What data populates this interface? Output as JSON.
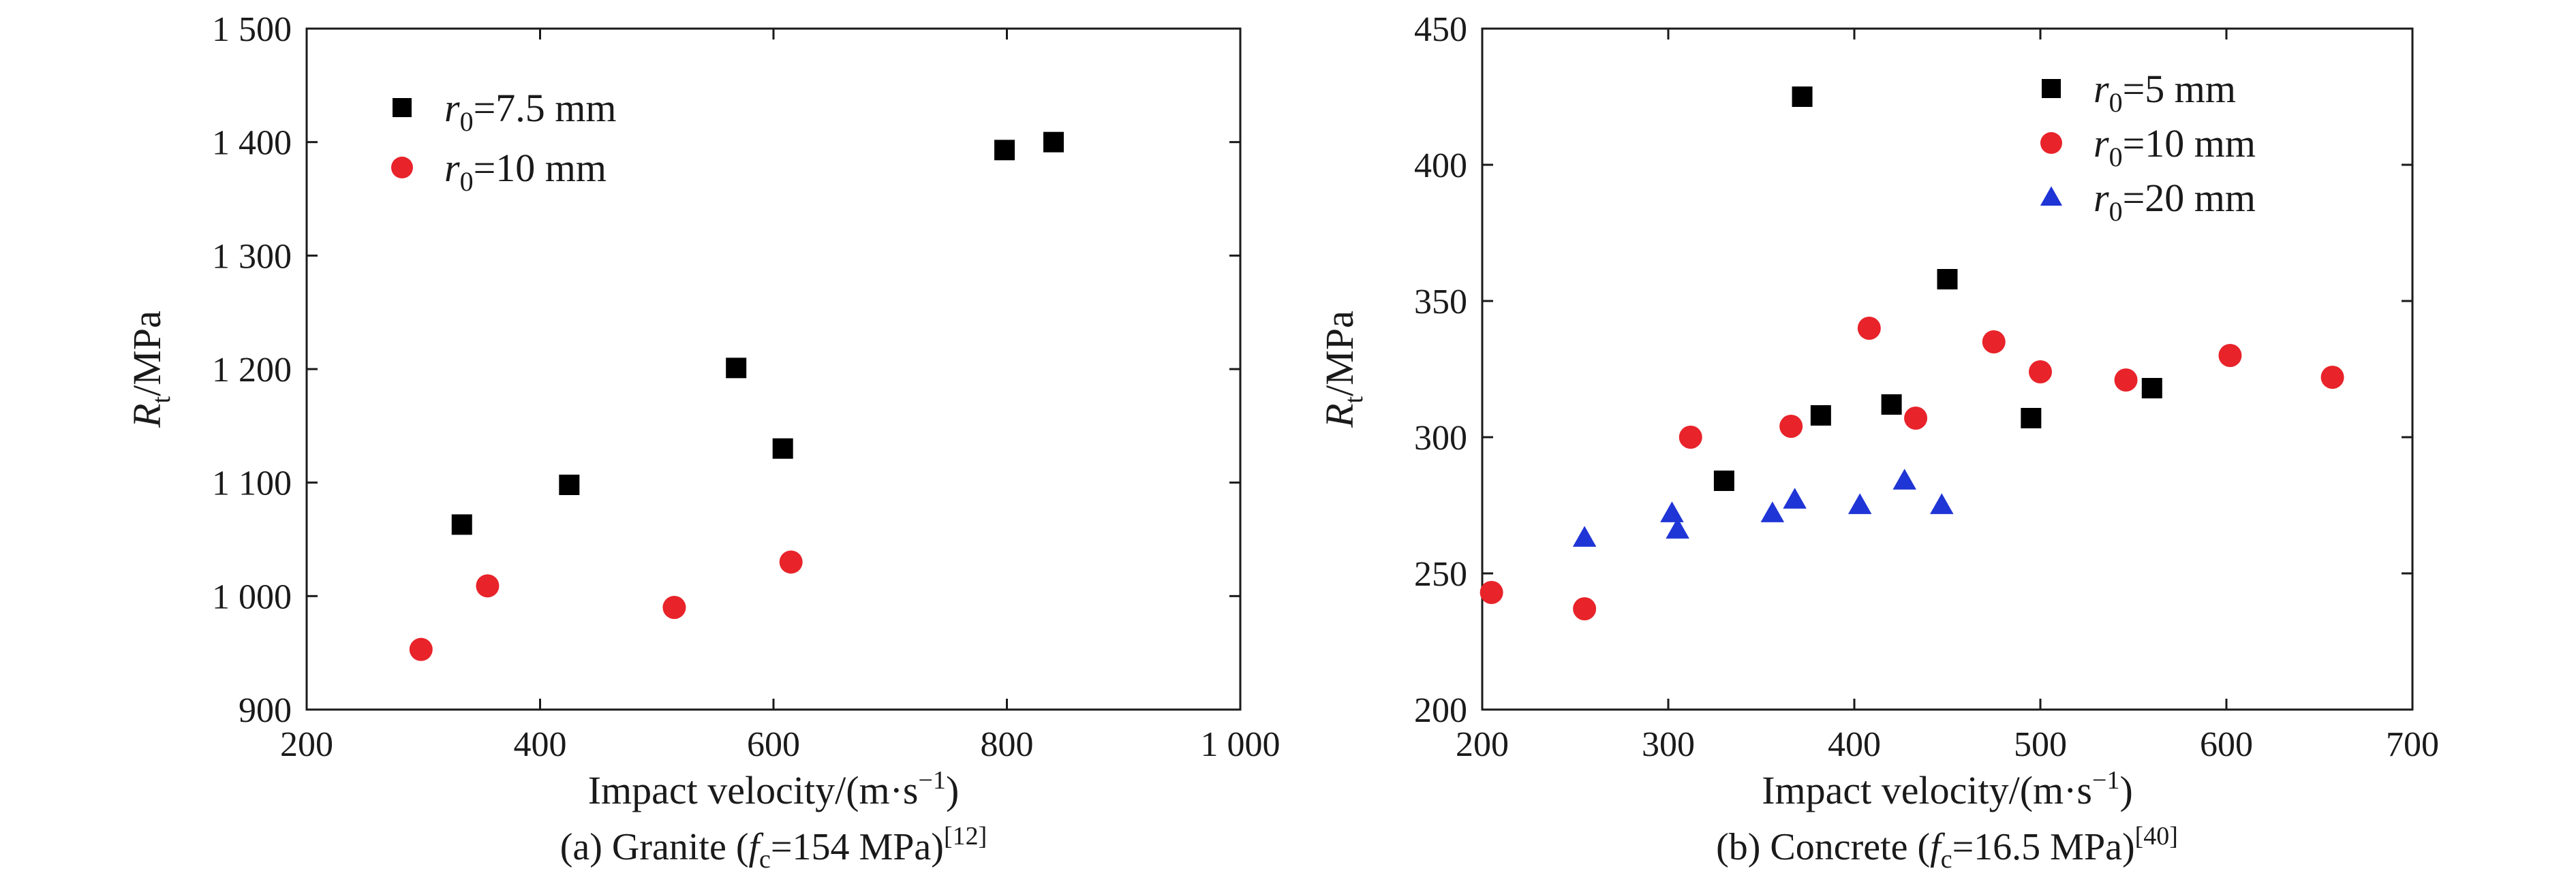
{
  "chart_data": [
    {
      "type": "scatter",
      "caption": {
        "prefix": "(a) Granite (",
        "f_symbol": "f",
        "f_sub": "c",
        "value": "=154 MPa)",
        "ref": "[12]"
      },
      "xlabel": "Impact velocity/(m·s",
      "xlabel_sup": "−1",
      "xlabel_close": ")",
      "ylabel": {
        "symbol": "R",
        "sub": "t",
        "unit": "/MPa"
      },
      "xlim": [
        200,
        1000
      ],
      "ylim": [
        900,
        1500
      ],
      "xticks": [
        200,
        400,
        600,
        800,
        1000
      ],
      "xtick_labels": [
        "200",
        "400",
        "600",
        "800",
        "1 000"
      ],
      "yticks": [
        900,
        1000,
        1100,
        1200,
        1300,
        1400,
        1500
      ],
      "ytick_labels": [
        "900",
        "1 000",
        "1 100",
        "1 200",
        "1 300",
        "1 400",
        "1 500"
      ],
      "legend_position": "top-left",
      "series": [
        {
          "name": "=7.5 mm",
          "legend_symbol": "r",
          "legend_sub": "0",
          "marker": "square",
          "color": "#000000",
          "points": [
            [
              333,
              1063
            ],
            [
              425,
              1098
            ],
            [
              568,
              1201
            ],
            [
              608,
              1130
            ],
            [
              798,
              1393
            ],
            [
              840,
              1400
            ]
          ]
        },
        {
          "name": "=10 mm",
          "legend_symbol": "r",
          "legend_sub": "0",
          "marker": "circle",
          "color": "#e8232a",
          "points": [
            [
              298,
              953
            ],
            [
              355,
              1009
            ],
            [
              515,
              990
            ],
            [
              615,
              1030
            ]
          ]
        }
      ]
    },
    {
      "type": "scatter",
      "caption": {
        "prefix": "(b) Concrete (",
        "f_symbol": "f",
        "f_sub": "c",
        "value": "=16.5 MPa)",
        "ref": "[40]"
      },
      "xlabel": "Impact velocity/(m·s",
      "xlabel_sup": "−1",
      "xlabel_close": ")",
      "ylabel": {
        "symbol": "R",
        "sub": "t",
        "unit": "/MPa"
      },
      "xlim": [
        200,
        700
      ],
      "ylim": [
        200,
        450
      ],
      "xticks": [
        200,
        300,
        400,
        500,
        600,
        700
      ],
      "xtick_labels": [
        "200",
        "300",
        "400",
        "500",
        "600",
        "700"
      ],
      "yticks": [
        200,
        250,
        300,
        350,
        400,
        450
      ],
      "ytick_labels": [
        "200",
        "250",
        "300",
        "350",
        "400",
        "450"
      ],
      "legend_position": "top-right",
      "series": [
        {
          "name": "=5 mm",
          "legend_symbol": "r",
          "legend_sub": "0",
          "marker": "square",
          "color": "#000000",
          "points": [
            [
              330,
              284
            ],
            [
              372,
              425
            ],
            [
              382,
              308
            ],
            [
              420,
              312
            ],
            [
              450,
              358
            ],
            [
              495,
              307
            ],
            [
              560,
              318
            ]
          ]
        },
        {
          "name": "=10 mm",
          "legend_symbol": "r",
          "legend_sub": "0",
          "marker": "circle",
          "color": "#e8232a",
          "points": [
            [
              205,
              243
            ],
            [
              255,
              237
            ],
            [
              312,
              300
            ],
            [
              366,
              304
            ],
            [
              408,
              340
            ],
            [
              433,
              307
            ],
            [
              475,
              335
            ],
            [
              500,
              324
            ],
            [
              546,
              321
            ],
            [
              602,
              330
            ],
            [
              657,
              322
            ]
          ]
        },
        {
          "name": "=20 mm",
          "legend_symbol": "r",
          "legend_sub": "0",
          "marker": "triangle",
          "color": "#1f35d6",
          "points": [
            [
              255,
              263
            ],
            [
              302,
              272
            ],
            [
              305,
              266
            ],
            [
              356,
              272
            ],
            [
              368,
              277
            ],
            [
              403,
              275
            ],
            [
              427,
              284
            ],
            [
              447,
              275
            ]
          ]
        }
      ]
    }
  ]
}
